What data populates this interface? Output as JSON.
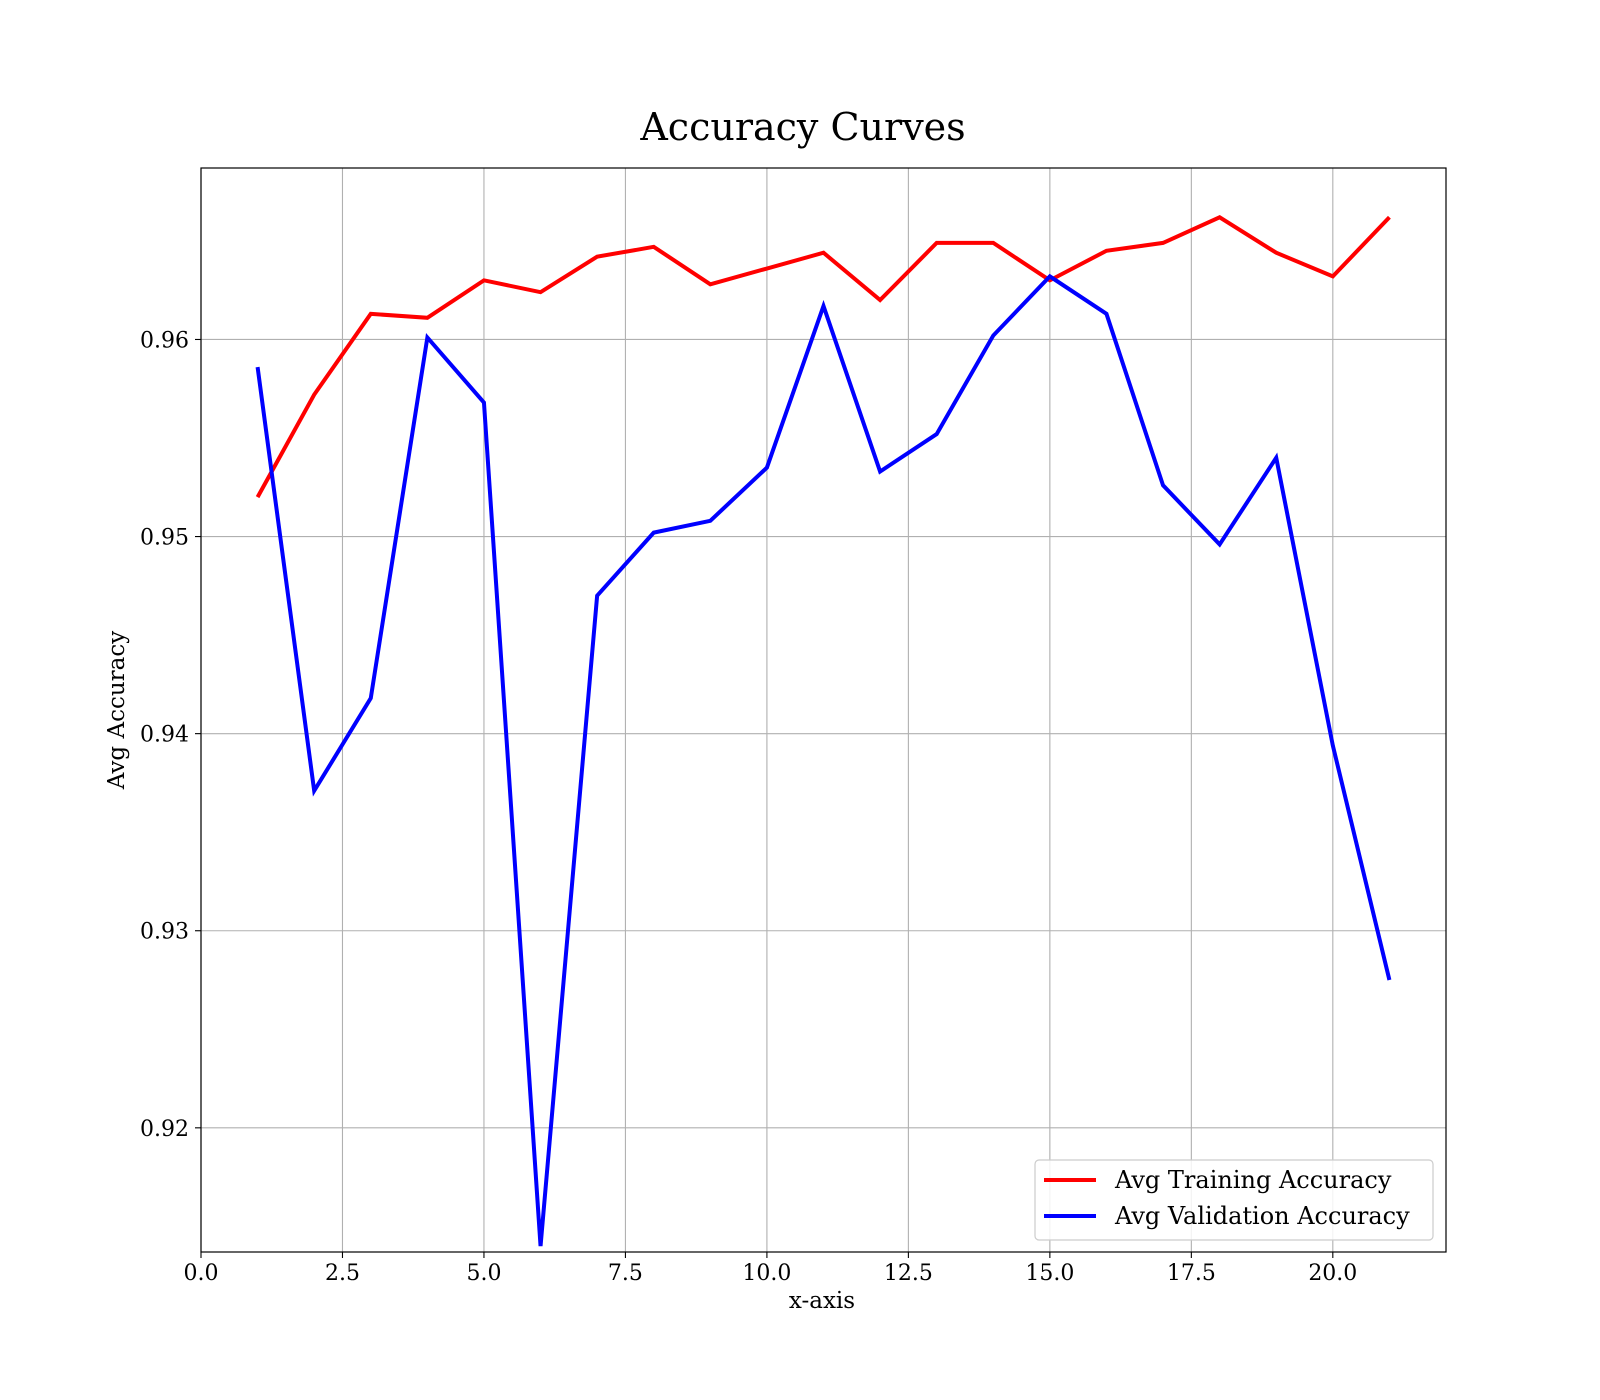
{
  "chart_data": {
    "type": "line",
    "title": "Accuracy Curves",
    "xlabel": "x-axis",
    "ylabel": "Avg Accuracy",
    "xlim": [
      0,
      22
    ],
    "ylim": [
      0.9137,
      0.9687
    ],
    "x_ticks": [
      0.0,
      2.5,
      5.0,
      7.5,
      10.0,
      12.5,
      15.0,
      17.5,
      20.0
    ],
    "x_tick_labels": [
      "0.0",
      "2.5",
      "5.0",
      "7.5",
      "10.0",
      "12.5",
      "15.0",
      "17.5",
      "20.0"
    ],
    "y_ticks": [
      0.92,
      0.93,
      0.94,
      0.95,
      0.96
    ],
    "y_tick_labels": [
      "0.92",
      "0.93",
      "0.94",
      "0.95",
      "0.96"
    ],
    "grid": true,
    "legend_position": "bottom-right",
    "x": [
      1,
      2,
      3,
      4,
      5,
      6,
      7,
      8,
      9,
      10,
      11,
      12,
      13,
      14,
      15,
      16,
      17,
      18,
      19,
      20,
      21
    ],
    "series": [
      {
        "name": "Avg Training Accuracy",
        "color": "#ff0000",
        "values": [
          0.952,
          0.9572,
          0.9613,
          0.9611,
          0.963,
          0.9624,
          0.9642,
          0.9647,
          0.9628,
          0.9636,
          0.9644,
          0.962,
          0.9649,
          0.9649,
          0.963,
          0.9645,
          0.9649,
          0.9662,
          0.9644,
          0.9632,
          0.9662
        ]
      },
      {
        "name": "Avg Validation Accuracy",
        "color": "#0000ff",
        "values": [
          0.9586,
          0.9371,
          0.9418,
          0.9601,
          0.9568,
          0.914,
          0.947,
          0.9502,
          0.9508,
          0.9535,
          0.9617,
          0.9533,
          0.9552,
          0.9602,
          0.9632,
          0.9613,
          0.9526,
          0.9496,
          0.954,
          0.9394,
          0.9275
        ]
      }
    ]
  }
}
